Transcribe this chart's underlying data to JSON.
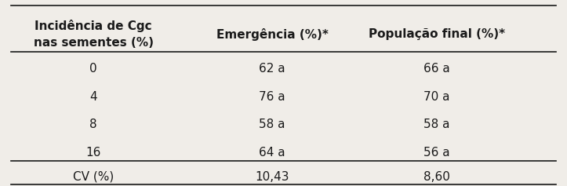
{
  "col1_header": "Incidência de Cgc\nnas sementes (%)",
  "col2_header": "Emergência (%)*",
  "col3_header": "População final (%)*",
  "rows": [
    [
      "0",
      "62 a",
      "66 a"
    ],
    [
      "4",
      "76 a",
      "70 a"
    ],
    [
      "8",
      "58 a",
      "58 a"
    ],
    [
      "16",
      "64 a",
      "56 a"
    ]
  ],
  "cv_row": [
    "CV (%)",
    "10,43",
    "8,60"
  ],
  "bg_color": "#f0ede8",
  "text_color": "#1a1a1a",
  "font_size": 11,
  "header_font_size": 11
}
